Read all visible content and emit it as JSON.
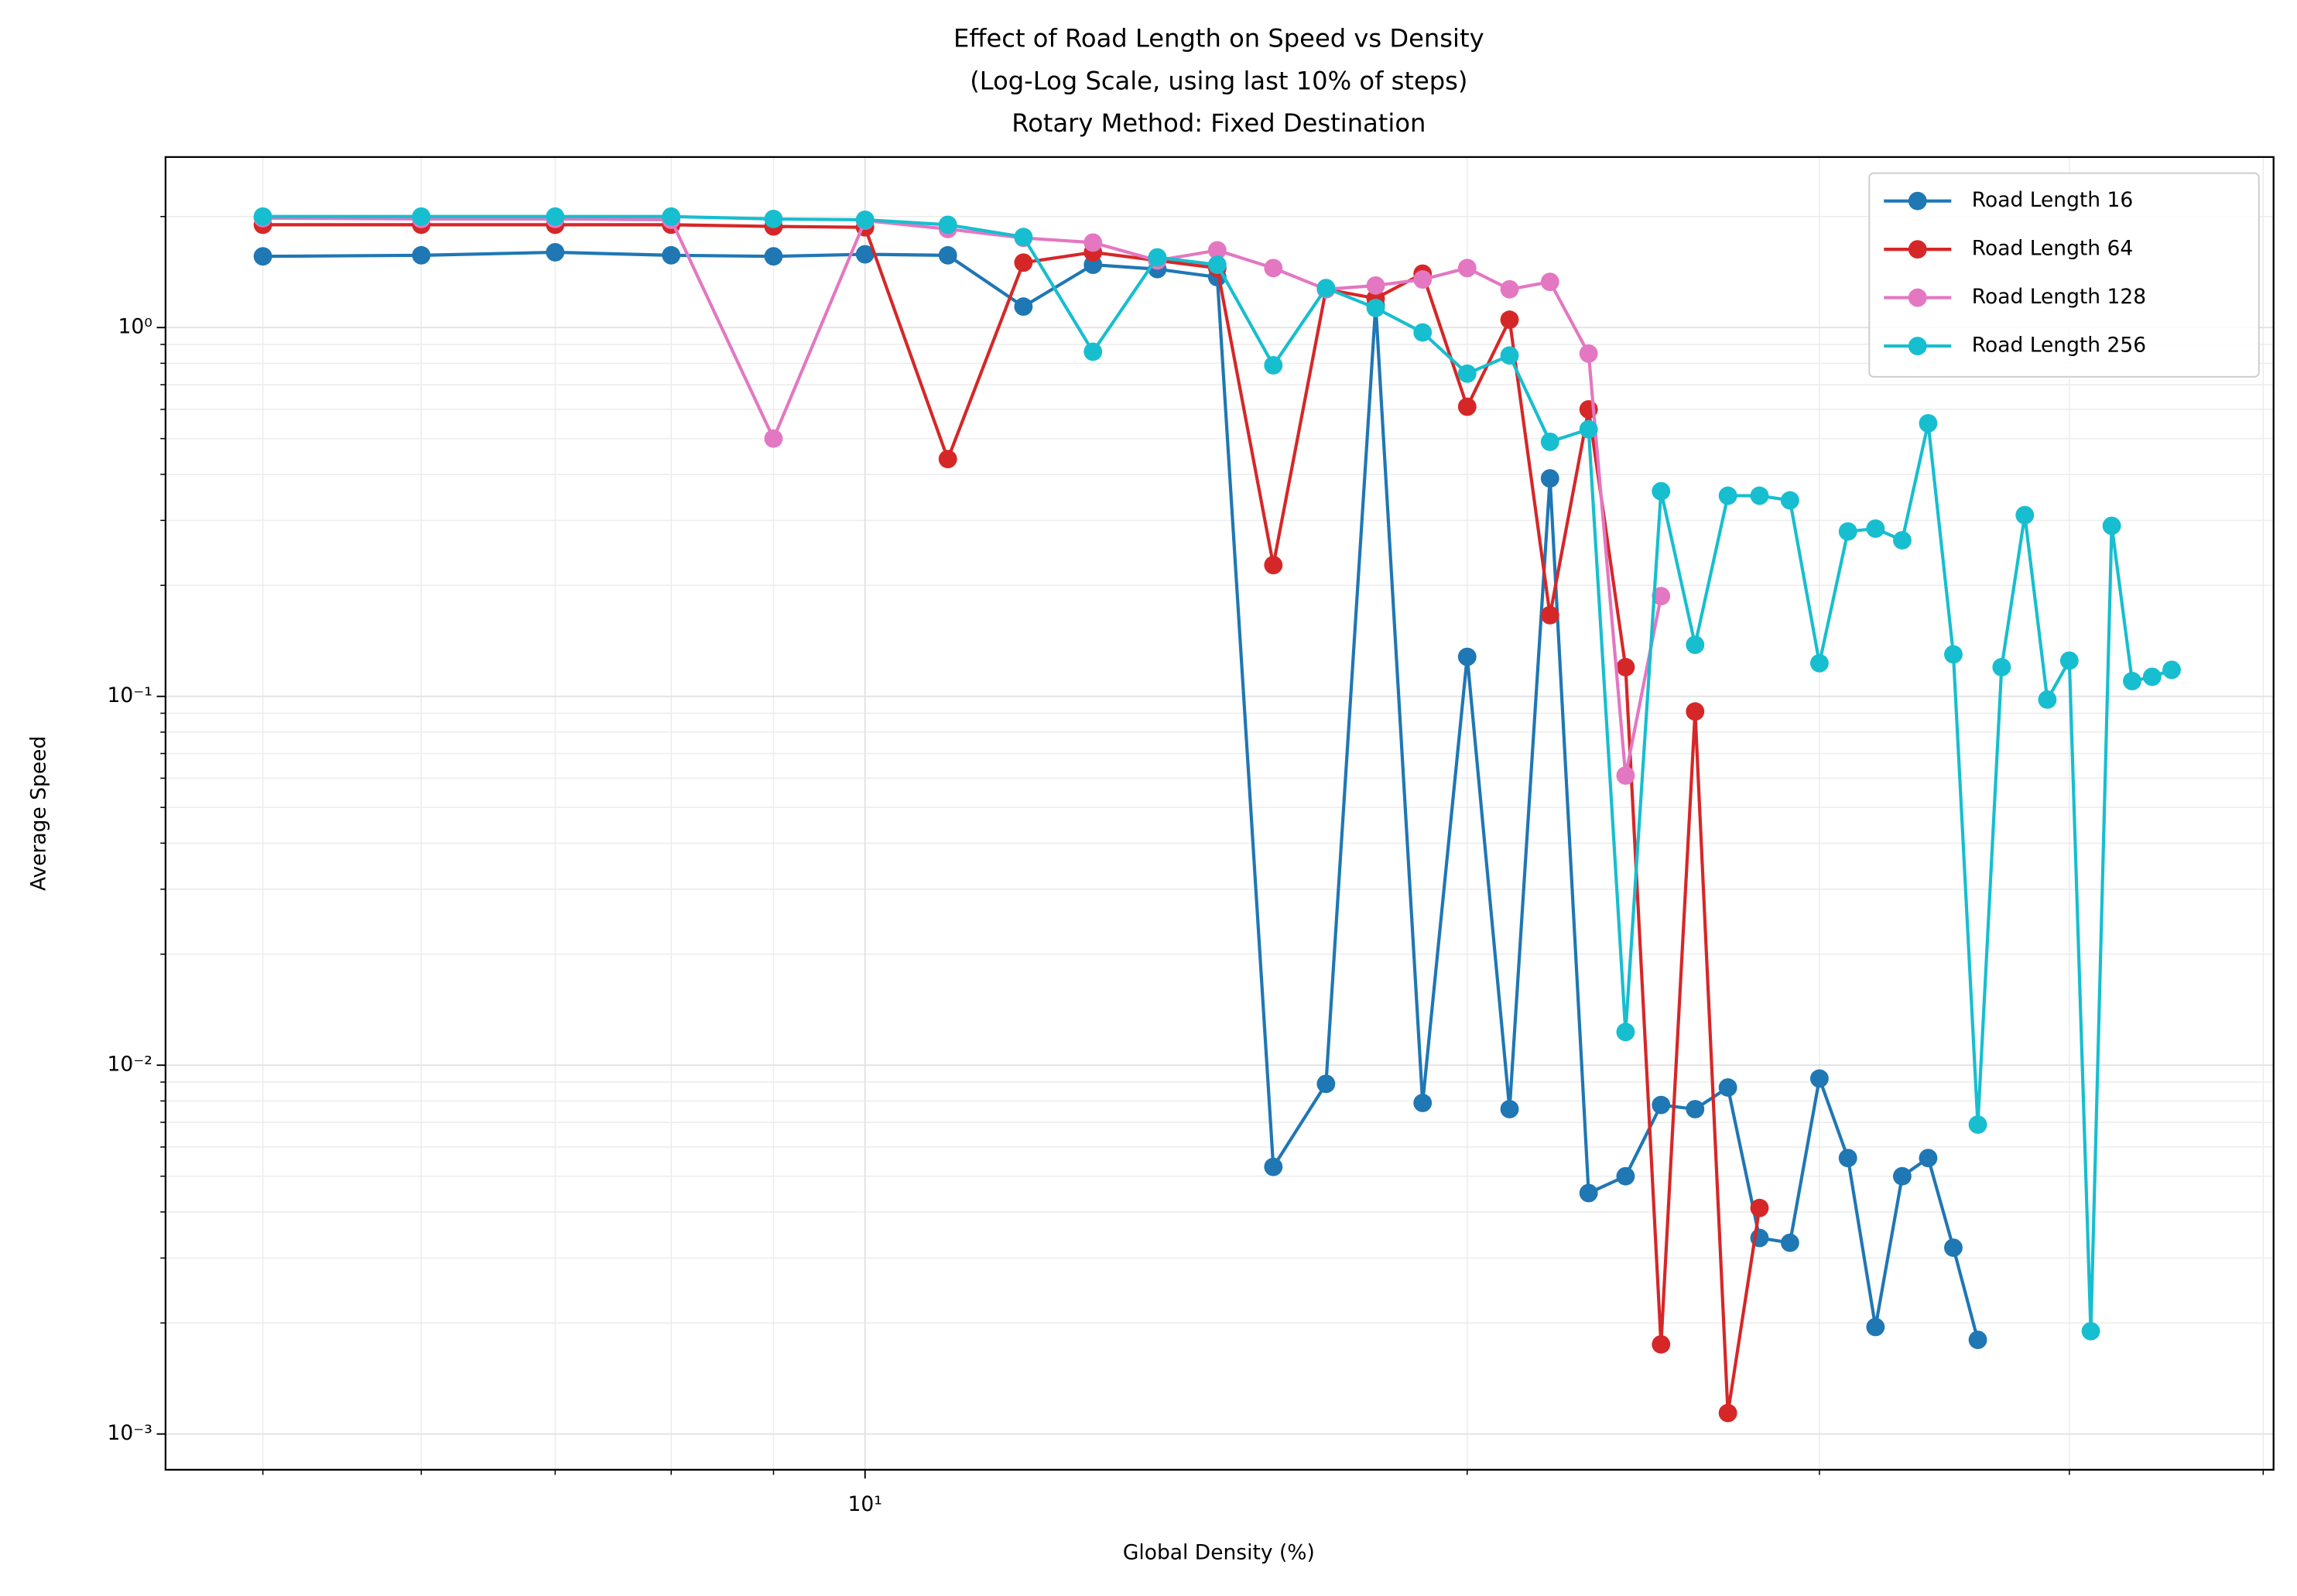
{
  "chart_data": {
    "type": "line",
    "title": [
      "Effect of Road Length on Speed vs Density",
      "(Log-Log Scale, using last 10% of steps)",
      "Rotary Method: Fixed Destination"
    ],
    "xlabel": "Global Density (%)",
    "ylabel": "Average Speed",
    "xscale": "log",
    "yscale": "log",
    "xlim": [
      4.47,
      50.6
    ],
    "ylim": [
      0.0008,
      2.9
    ],
    "xticks": [
      {
        "value": 10,
        "label": "10¹"
      }
    ],
    "xminorticks": [
      5,
      6,
      7,
      8,
      9,
      20,
      30,
      40,
      50
    ],
    "yticks": [
      {
        "value": 0.001,
        "label": "10⁻³"
      },
      {
        "value": 0.01,
        "label": "10⁻²"
      },
      {
        "value": 0.1,
        "label": "10⁻¹"
      },
      {
        "value": 1,
        "label": "10⁰"
      }
    ],
    "yminorticks": [
      0.002,
      0.003,
      0.004,
      0.005,
      0.006,
      0.007,
      0.008,
      0.009,
      0.02,
      0.03,
      0.04,
      0.05,
      0.06,
      0.07,
      0.08,
      0.09,
      0.2,
      0.3,
      0.4,
      0.5,
      0.6,
      0.7,
      0.8,
      0.9,
      2
    ],
    "grid": true,
    "legend": "upper right",
    "series": [
      {
        "name": "Road Length 16",
        "color": "#1f77b4",
        "x": [
          5,
          6,
          7,
          8,
          9,
          10,
          11,
          12,
          13,
          14,
          15,
          16,
          17,
          18,
          19,
          20,
          21,
          22,
          23,
          24,
          25,
          26,
          27,
          28,
          29,
          30,
          31,
          32,
          33,
          34,
          35,
          36
        ],
        "values": [
          1.56,
          1.57,
          1.6,
          1.57,
          1.56,
          1.58,
          1.57,
          1.14,
          1.48,
          1.44,
          1.37,
          0.0053,
          0.0089,
          1.15,
          0.0079,
          0.128,
          0.0076,
          0.39,
          0.0045,
          0.005,
          0.0078,
          0.0076,
          0.0087,
          0.0034,
          0.0033,
          0.0092,
          0.0056,
          0.00195,
          0.005,
          0.0056,
          0.0032,
          0.0018
        ]
      },
      {
        "name": "Road Length 64",
        "color": "#d62728",
        "x": [
          5,
          6,
          7,
          8,
          9,
          10,
          11,
          12,
          13,
          14,
          15,
          16,
          17,
          18,
          19,
          20,
          21,
          22,
          23,
          24,
          25,
          26,
          27,
          28
        ],
        "values": [
          1.9,
          1.9,
          1.9,
          1.9,
          1.88,
          1.87,
          0.44,
          1.5,
          1.6,
          1.52,
          1.45,
          0.227,
          1.27,
          1.2,
          1.4,
          0.61,
          1.05,
          0.166,
          0.6,
          0.12,
          0.00175,
          0.091,
          0.00114,
          0.0041
        ]
      },
      {
        "name": "Road Length 128",
        "color": "#e377c2",
        "x": [
          5,
          6,
          7,
          8,
          9,
          10,
          11,
          12,
          13,
          14,
          15,
          16,
          17,
          18,
          19,
          20,
          21,
          22,
          23,
          24,
          25
        ],
        "values": [
          1.98,
          1.97,
          1.97,
          1.96,
          0.5,
          1.95,
          1.85,
          1.75,
          1.7,
          1.52,
          1.62,
          1.45,
          1.27,
          1.3,
          1.35,
          1.45,
          1.27,
          1.33,
          0.85,
          0.061,
          0.187
        ]
      },
      {
        "name": "Road Length 256",
        "color": "#17becf",
        "x": [
          5,
          6,
          7,
          8,
          9,
          10,
          11,
          12,
          13,
          14,
          15,
          16,
          17,
          18,
          19,
          20,
          21,
          22,
          23,
          24,
          25,
          26,
          27,
          28,
          29,
          30,
          31,
          32,
          33,
          34,
          35,
          36,
          37,
          38,
          39,
          40,
          41,
          42,
          43,
          44,
          45
        ],
        "values": [
          2.0,
          2.0,
          2.0,
          2.0,
          1.97,
          1.96,
          1.9,
          1.76,
          0.86,
          1.55,
          1.48,
          0.79,
          1.28,
          1.13,
          0.97,
          0.75,
          0.84,
          0.49,
          0.53,
          0.0123,
          0.36,
          0.138,
          0.35,
          0.35,
          0.34,
          0.123,
          0.28,
          0.285,
          0.265,
          0.55,
          0.13,
          0.0069,
          0.12,
          0.31,
          0.098,
          0.125,
          0.0019,
          0.29,
          0.11,
          0.113,
          0.118
        ]
      }
    ]
  }
}
